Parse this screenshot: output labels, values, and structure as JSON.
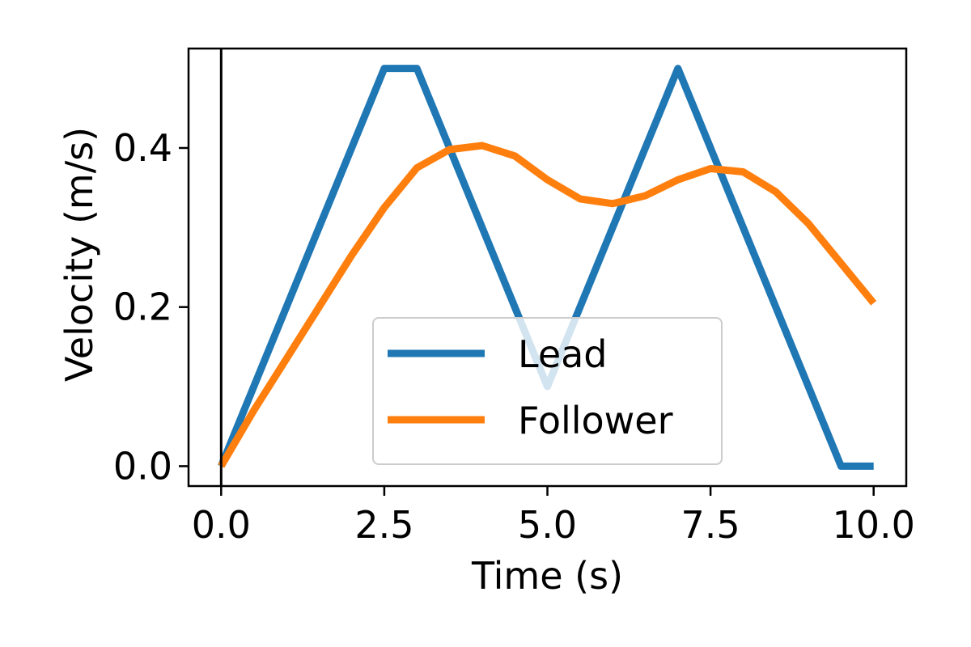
{
  "chart_data": {
    "type": "line",
    "title": "",
    "xlabel": "Time (s)",
    "ylabel": "Velocity (m/s)",
    "xlim": [
      -0.5,
      10.5
    ],
    "ylim": [
      -0.025,
      0.525
    ],
    "xticks": [
      0.0,
      2.5,
      5.0,
      7.5,
      10.0
    ],
    "xtick_labels": [
      "0.0",
      "2.5",
      "5.0",
      "7.5",
      "10.0"
    ],
    "yticks": [
      0.0,
      0.2,
      0.4
    ],
    "ytick_labels": [
      "0.0",
      "0.2",
      "0.4"
    ],
    "grid": false,
    "vertical_line_x": 0.0,
    "legend": {
      "position": "lower center",
      "entries": [
        "Lead",
        "Follower"
      ]
    },
    "series": [
      {
        "name": "Lead",
        "color": "#1f77b4",
        "x": [
          0.0,
          2.5,
          3.0,
          5.0,
          7.0,
          9.5,
          10.0
        ],
        "y": [
          0.0,
          0.5,
          0.5,
          0.1,
          0.5,
          0.0,
          0.0
        ]
      },
      {
        "name": "Follower",
        "color": "#ff7f0e",
        "x": [
          0.0,
          0.5,
          1.0,
          1.5,
          2.0,
          2.5,
          3.0,
          3.5,
          4.0,
          4.5,
          5.0,
          5.5,
          6.0,
          6.5,
          7.0,
          7.5,
          8.0,
          8.5,
          9.0,
          9.5,
          10.0
        ],
        "y": [
          0.0,
          0.07,
          0.135,
          0.2,
          0.265,
          0.325,
          0.375,
          0.398,
          0.403,
          0.39,
          0.36,
          0.336,
          0.33,
          0.34,
          0.36,
          0.374,
          0.37,
          0.345,
          0.305,
          0.255,
          0.205
        ]
      }
    ]
  }
}
